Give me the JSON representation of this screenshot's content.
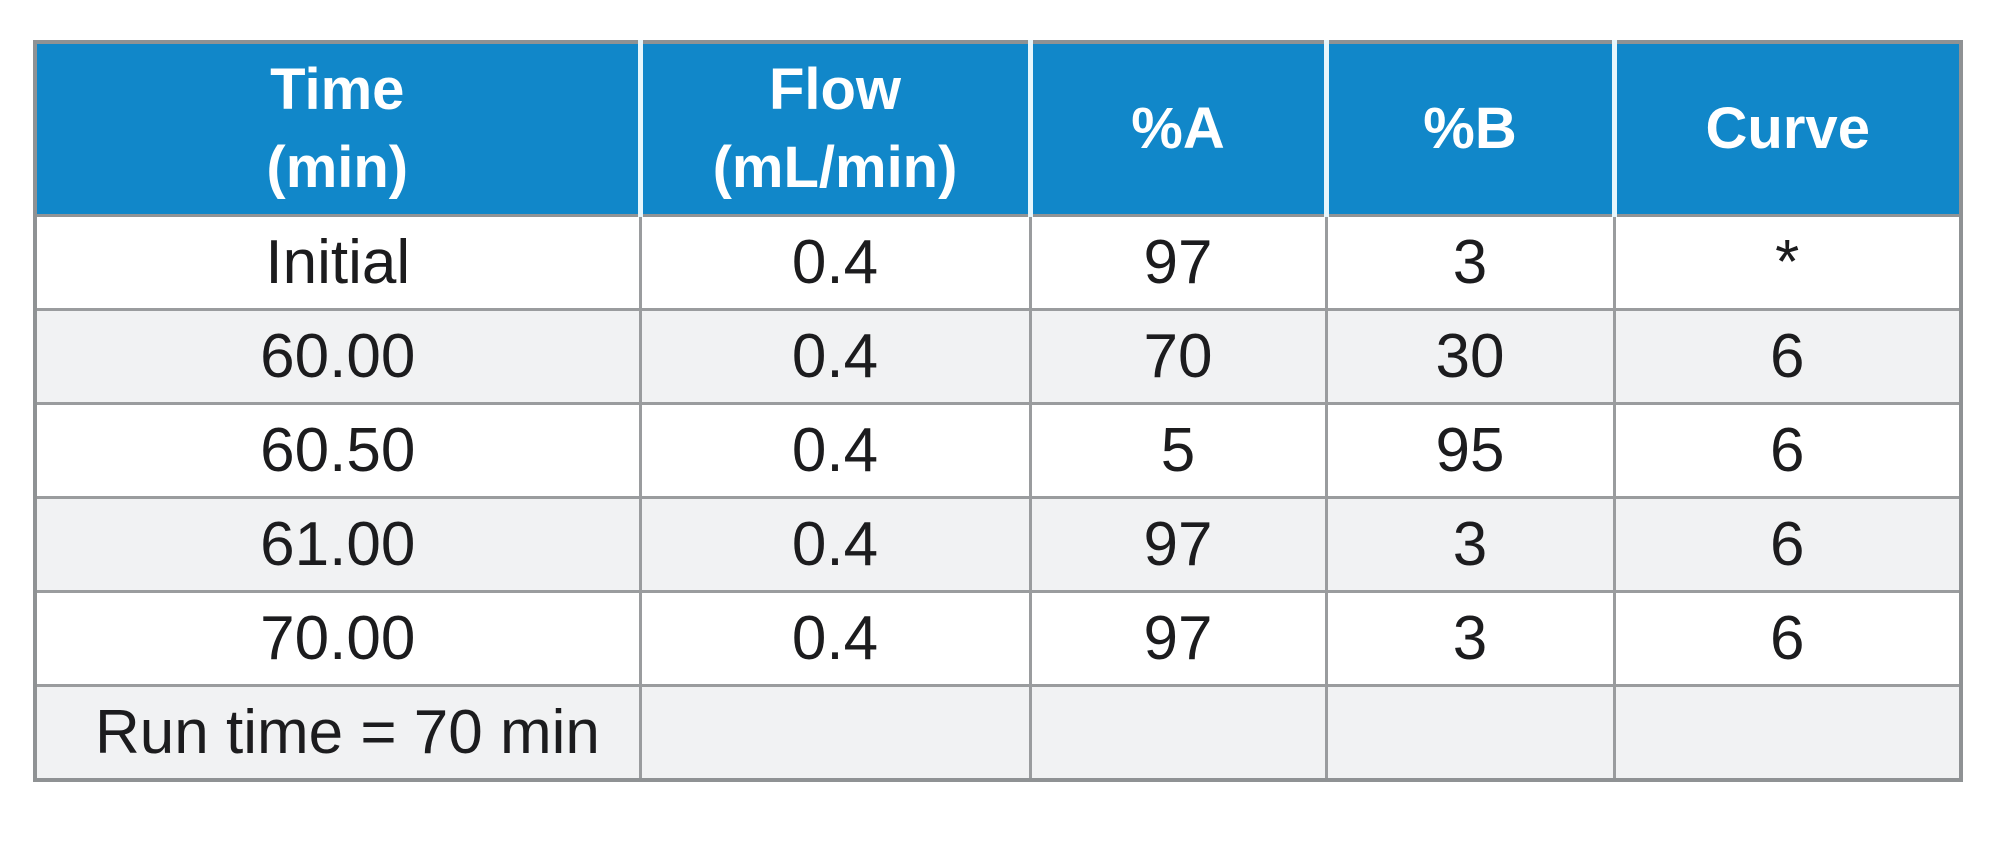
{
  "table": {
    "columns": [
      {
        "label": "Time\n(min)"
      },
      {
        "label": "Flow\n(mL/min)"
      },
      {
        "label": "%A"
      },
      {
        "label": "%B"
      },
      {
        "label": "Curve"
      }
    ],
    "rows": [
      {
        "cells": [
          "Initial",
          "0.4",
          "97",
          "3",
          "*"
        ]
      },
      {
        "cells": [
          "60.00",
          "0.4",
          "70",
          "30",
          "6"
        ]
      },
      {
        "cells": [
          "60.50",
          "0.4",
          "5",
          "95",
          "6"
        ]
      },
      {
        "cells": [
          "61.00",
          "0.4",
          "97",
          "3",
          "6"
        ]
      },
      {
        "cells": [
          "70.00",
          "0.4",
          "97",
          "3",
          "6"
        ]
      }
    ],
    "footer": {
      "label": "Run time = 70 min"
    }
  },
  "colors": {
    "header_bg": "#1187c9",
    "header_text": "#ffffff",
    "header_separator": "#e7f6fc",
    "body_text": "#1c1c1e",
    "stripe_bg": "#f1f2f3",
    "grid_border": "#9a9c9e",
    "outer_border": "#8f9294",
    "page_bg": "#ffffff"
  }
}
